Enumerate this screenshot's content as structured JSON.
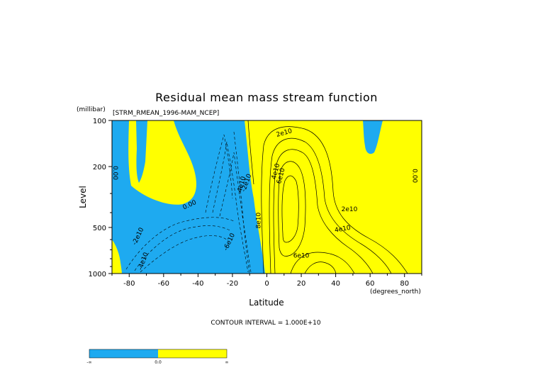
{
  "chart_data": {
    "type": "heatmap",
    "title": "Residual mean mass stream function",
    "subtitle": "[STRM_RMEAN_1996-MAM_NCEP]",
    "xlabel": "Latitude",
    "ylabel": "Level",
    "x_unit": "(degrees_north)",
    "y_unit": "(millibar)",
    "xlim": [
      -90,
      90
    ],
    "ylim": [
      1000,
      100
    ],
    "y_scale": "log",
    "x_ticks": [
      -80,
      -60,
      -40,
      -20,
      0,
      20,
      40,
      60,
      80
    ],
    "y_ticks": [
      100,
      200,
      500,
      1000
    ],
    "y_tick_labels": [
      "100",
      "200",
      "500",
      "1000"
    ],
    "contour_interval_text": "CONTOUR INTERVAL = 1.000E+10",
    "contour_labels": [
      {
        "text": "0.00",
        "lat": -88,
        "lev": 220,
        "rot": 90
      },
      {
        "text": "0.00",
        "lat": -45,
        "lev": 355,
        "rot": -25
      },
      {
        "text": "0.00",
        "lat": 86,
        "lev": 230,
        "rot": 90
      },
      {
        "text": "-2e10",
        "lat": -75,
        "lev": 570,
        "rot": -65
      },
      {
        "text": "-4e10",
        "lat": -72,
        "lev": 830,
        "rot": -70
      },
      {
        "text": "-6e10",
        "lat": -22,
        "lev": 620,
        "rot": -65
      },
      {
        "text": "-2e10",
        "lat": -12,
        "lev": 255,
        "rot": -70
      },
      {
        "text": "-4e10",
        "lat": -15,
        "lev": 265,
        "rot": -75
      },
      {
        "text": "2e10",
        "lat": 10,
        "lev": 120,
        "rot": -15
      },
      {
        "text": "4e10",
        "lat": 5,
        "lev": 215,
        "rot": -75
      },
      {
        "text": "6e10",
        "lat": 8,
        "lev": 230,
        "rot": -75
      },
      {
        "text": "8e10",
        "lat": -5,
        "lev": 450,
        "rot": -90
      },
      {
        "text": "2e10",
        "lat": 48,
        "lev": 380,
        "rot": 0
      },
      {
        "text": "4e10",
        "lat": 44,
        "lev": 510,
        "rot": -10
      },
      {
        "text": "6e10",
        "lat": 20,
        "lev": 760,
        "rot": 0
      }
    ],
    "shading_colors": {
      "negative": "#1eaaf0",
      "positive": "#ffff00"
    },
    "colorbar": {
      "labels": [
        "-∞",
        "0.0",
        "∞"
      ]
    }
  }
}
